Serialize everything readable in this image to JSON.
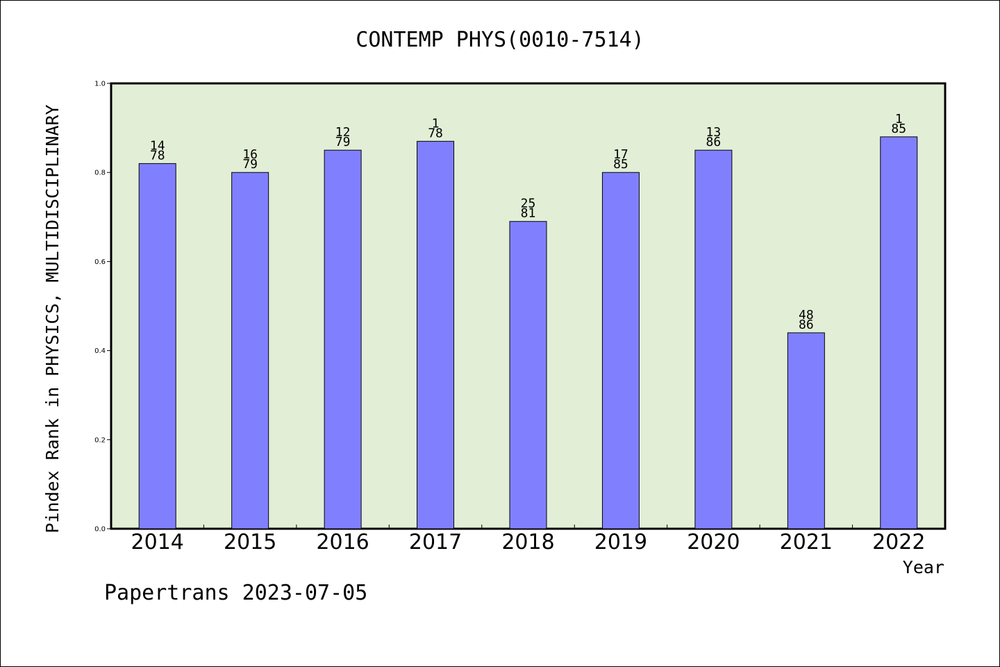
{
  "chart_data": {
    "type": "bar",
    "title": "CONTEMP PHYS(0010-7514)",
    "xlabel": "Year",
    "ylabel": "Pindex Rank in PHYSICS, MULTIDISCIPLINARY",
    "ylim": [
      0,
      1.0
    ],
    "yticks": [
      "0.0",
      "0.2",
      "0.4",
      "0.6",
      "0.8",
      "1.0"
    ],
    "categories": [
      "2014",
      "2015",
      "2016",
      "2017",
      "2018",
      "2019",
      "2020",
      "2021",
      "2022"
    ],
    "values": [
      0.82,
      0.8,
      0.85,
      0.87,
      0.69,
      0.8,
      0.85,
      0.44,
      0.88
    ],
    "labels_top": [
      "14",
      "16",
      "12",
      "1",
      "25",
      "17",
      "13",
      "48",
      "1"
    ],
    "labels_bottom": [
      "78",
      "79",
      "79",
      "78",
      "81",
      "85",
      "86",
      "86",
      "85"
    ],
    "grid": false,
    "legend": "none"
  },
  "footer": "Papertrans 2023-07-05",
  "colors": {
    "plot_bg": "#e2efd6",
    "bar": "#8080ff",
    "bar_edge": "#000000",
    "axis": "#000000"
  }
}
